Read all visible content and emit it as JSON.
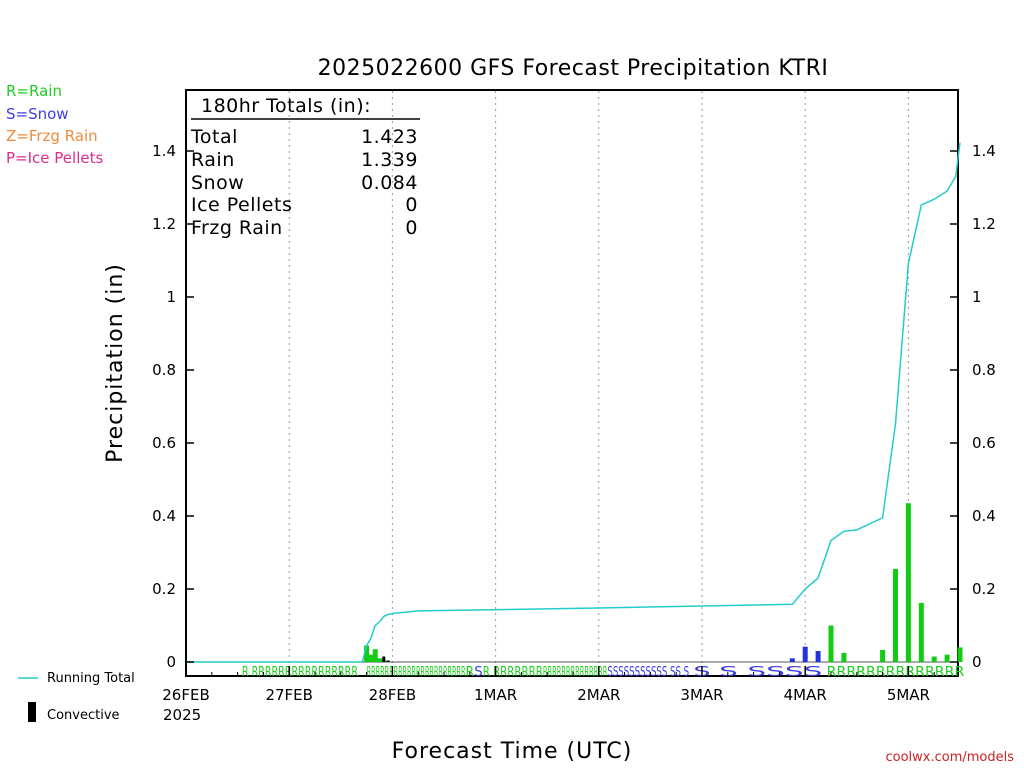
{
  "header": {
    "title": "2025022600 GFS Forecast Precipitation KTRI",
    "watermark": "coolwx.com/models"
  },
  "type_legend": [
    {
      "label": "R=Rain",
      "color": "#1fcf1f"
    },
    {
      "label": "S=Snow",
      "color": "#3d3de8"
    },
    {
      "label": "Z=Frzg Rain",
      "color": "#ee8a3a"
    },
    {
      "label": "P=Ice Pellets",
      "color": "#e02a8c"
    }
  ],
  "totals": {
    "heading": "180hr Totals (in):",
    "rows": [
      {
        "label": "Total",
        "value": "1.423"
      },
      {
        "label": "Rain",
        "value": "1.339"
      },
      {
        "label": "Snow",
        "value": "0.084"
      },
      {
        "label": "Ice Pellets",
        "value": "0"
      },
      {
        "label": "Frzg Rain",
        "value": "0"
      }
    ]
  },
  "bottom_legend": {
    "running_total": "Running Total",
    "convective": "Convective"
  },
  "chart_data": {
    "type": "bar",
    "title": "2025022600 GFS Forecast Precipitation KTRI",
    "xlabel": "Forecast Time (UTC)",
    "ylabel": "Precipitation (in)",
    "ylim": [
      0,
      1.55
    ],
    "xlim_hours": [
      0,
      180
    ],
    "yticks": [
      0,
      0.2,
      0.4,
      0.6,
      0.8,
      1,
      1.2,
      1.4
    ],
    "ytick_labels": [
      "0",
      "0.2",
      "0.4",
      "0.6",
      "0.8",
      "1",
      "1.2",
      "1.4"
    ],
    "xticks": [
      {
        "hour": 0,
        "label": "26FEB",
        "sublabel": "2025"
      },
      {
        "hour": 24,
        "label": "27FEB"
      },
      {
        "hour": 48,
        "label": "28FEB"
      },
      {
        "hour": 72,
        "label": "1MAR"
      },
      {
        "hour": 96,
        "label": "2MAR"
      },
      {
        "hour": 120,
        "label": "3MAR"
      },
      {
        "hour": 144,
        "label": "4MAR"
      },
      {
        "hour": 168,
        "label": "5MAR"
      }
    ],
    "grid": "vertical-dotted",
    "series": [
      {
        "name": "Rain",
        "color": "#11cc11",
        "bars": [
          {
            "hour": 42,
            "value": 0.045
          },
          {
            "hour": 43,
            "value": 0.02
          },
          {
            "hour": 44,
            "value": 0.035
          },
          {
            "hour": 45,
            "value": 0.01
          },
          {
            "hour": 46,
            "value": 0.005
          },
          {
            "hour": 150,
            "value": 0.1
          },
          {
            "hour": 153,
            "value": 0.025
          },
          {
            "hour": 162,
            "value": 0.033
          },
          {
            "hour": 165,
            "value": 0.255
          },
          {
            "hour": 168,
            "value": 0.435
          },
          {
            "hour": 171,
            "value": 0.162
          },
          {
            "hour": 174,
            "value": 0.015
          },
          {
            "hour": 177,
            "value": 0.02
          },
          {
            "hour": 180,
            "value": 0.04
          }
        ]
      },
      {
        "name": "Snow",
        "color": "#2233dd",
        "bars": [
          {
            "hour": 141,
            "value": 0.01
          },
          {
            "hour": 144,
            "value": 0.042
          },
          {
            "hour": 147,
            "value": 0.03
          }
        ]
      },
      {
        "name": "Convective",
        "color": "#000000",
        "bars": [
          {
            "hour": 46,
            "value": 0.015
          },
          {
            "hour": 47,
            "value": 0.004
          }
        ]
      },
      {
        "name": "Running Total",
        "type": "step-line",
        "color": "#22cccc",
        "points": [
          [
            0,
            0
          ],
          [
            41,
            0
          ],
          [
            42,
            0.045
          ],
          [
            43,
            0.065
          ],
          [
            44,
            0.1
          ],
          [
            45,
            0.11
          ],
          [
            46,
            0.125
          ],
          [
            47,
            0.13
          ],
          [
            48,
            0.133
          ],
          [
            54,
            0.14
          ],
          [
            96,
            0.148
          ],
          [
            141,
            0.158
          ],
          [
            144,
            0.2
          ],
          [
            147,
            0.23
          ],
          [
            150,
            0.333
          ],
          [
            153,
            0.358
          ],
          [
            156,
            0.362
          ],
          [
            162,
            0.395
          ],
          [
            165,
            0.653
          ],
          [
            168,
            1.092
          ],
          [
            171,
            1.252
          ],
          [
            174,
            1.268
          ],
          [
            177,
            1.29
          ],
          [
            179,
            1.33
          ],
          [
            180,
            1.423
          ]
        ]
      }
    ],
    "ptype_rows": [
      {
        "hour_start": 13,
        "hour_end": 40,
        "text": "R RRRRRRRRRRRRRRRR",
        "color": "#1fcf1f"
      },
      {
        "hour_start": 42,
        "hour_end": 65,
        "text": "RRRRRRRRRRRRRRRRRRRRRR",
        "color": "#1fcf1f"
      },
      {
        "hour_start": 65,
        "hour_end": 67,
        "text": "R",
        "color": "#1fcf1f"
      },
      {
        "hour_start": 67,
        "hour_end": 69,
        "text": "S",
        "color": "#3d3de8"
      },
      {
        "hour_start": 69,
        "hour_end": 83,
        "text": "R RRRRRRR",
        "color": "#1fcf1f"
      },
      {
        "hour_start": 83,
        "hour_end": 98,
        "text": "RRRRRRRRRRRRRR",
        "color": "#1fcf1f"
      },
      {
        "hour_start": 98,
        "hour_end": 117,
        "text": "SSSSSSSSSSS SS S",
        "color": "#3d3de8"
      },
      {
        "hour_start": 118,
        "hour_end": 122,
        "text": "S",
        "color": "#3d3de8"
      },
      {
        "hour_start": 124,
        "hour_end": 148,
        "text": "S SSSS",
        "color": "#3d3de8"
      },
      {
        "hour_start": 149,
        "hour_end": 181,
        "text": "RRRRRRRRRRRRRR",
        "color": "#1fcf1f"
      }
    ]
  }
}
